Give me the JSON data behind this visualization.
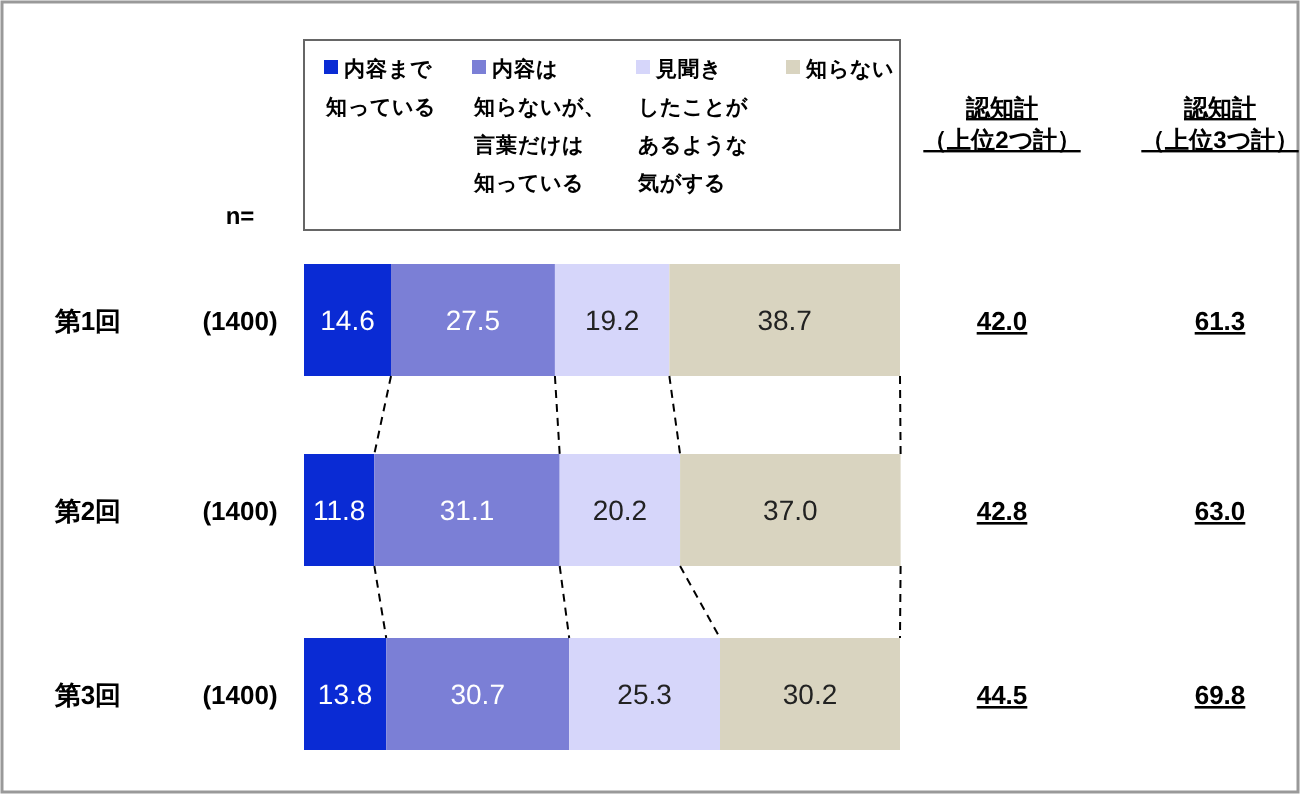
{
  "chart_data": {
    "type": "bar",
    "orientation": "horizontal",
    "stacked": true,
    "legend": "top",
    "grid": false,
    "tick_labels": false,
    "xlim": [
      0,
      100
    ],
    "categories": [
      "第1回",
      "第2回",
      "第3回"
    ],
    "series": [
      {
        "name": "内容まで知っている",
        "color": "#0a2bd4",
        "values": [
          14.6,
          11.8,
          13.8
        ],
        "value_labels": [
          "14.6",
          "11.8",
          "13.8"
        ]
      },
      {
        "name": "内容は知らないが、言葉だけは知っている",
        "color": "#7b7fd6",
        "values": [
          27.5,
          31.1,
          30.7
        ],
        "value_labels": [
          "27.5",
          "31.1",
          "30.7"
        ]
      },
      {
        "name": "見聞きしたことがあるような気がする",
        "color": "#d6d6fa",
        "values": [
          19.2,
          20.2,
          25.3
        ],
        "value_labels": [
          "19.2",
          "20.2",
          "25.3"
        ]
      },
      {
        "name": "知らない",
        "color": "#d9d4c0",
        "values": [
          38.7,
          37.0,
          30.2
        ],
        "value_labels": [
          "38.7",
          "37.0",
          "30.2"
        ]
      }
    ],
    "annotations": [
      "n=",
      "(1400)",
      "(1400)",
      "(1400)",
      "認知計（上位2つ計）",
      "42.0",
      "42.8",
      "44.5",
      "認知計（上位3つ計）",
      "61.3",
      "63.0",
      "69.8"
    ]
  }
}
